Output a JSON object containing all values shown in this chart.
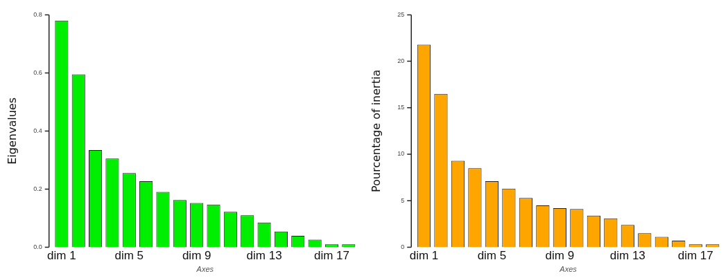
{
  "chart_data": [
    {
      "type": "bar",
      "categories": [
        "dim 1",
        null,
        null,
        null,
        "dim 5",
        null,
        null,
        null,
        "dim 9",
        null,
        null,
        null,
        "dim 13",
        null,
        null,
        null,
        "dim 17",
        null
      ],
      "values": [
        0.78,
        0.595,
        0.334,
        0.305,
        0.255,
        0.227,
        0.19,
        0.162,
        0.152,
        0.147,
        0.122,
        0.11,
        0.085,
        0.054,
        0.039,
        0.026,
        0.01,
        0.01
      ],
      "color": "#00ee00",
      "xlabel": "Axes",
      "ylabel": "Eigenvalues",
      "ylim": [
        0,
        0.8
      ],
      "yticks": [
        {
          "value": 0,
          "label": "0.0"
        },
        {
          "value": 0.2,
          "label": "0.2"
        },
        {
          "value": 0.4,
          "label": "0.4"
        },
        {
          "value": 0.6,
          "label": "0.6"
        },
        {
          "value": 0.8,
          "label": "0.8"
        }
      ],
      "grid": false,
      "legend": false
    },
    {
      "type": "bar",
      "categories": [
        "dim 1",
        null,
        null,
        null,
        "dim 5",
        null,
        null,
        null,
        "dim 9",
        null,
        null,
        null,
        "dim 13",
        null,
        null,
        null,
        "dim 17",
        null
      ],
      "values": [
        21.8,
        16.5,
        9.3,
        8.5,
        7.1,
        6.3,
        5.3,
        4.5,
        4.2,
        4.1,
        3.4,
        3.1,
        2.4,
        1.5,
        1.1,
        0.7,
        0.3,
        0.3
      ],
      "color": "#ffa500",
      "xlabel": "Axes",
      "ylabel": "Pourcentage of inertia",
      "ylim": [
        0,
        25
      ],
      "yticks": [
        0,
        5,
        10,
        15,
        20,
        25
      ],
      "grid": false,
      "legend": false
    }
  ]
}
